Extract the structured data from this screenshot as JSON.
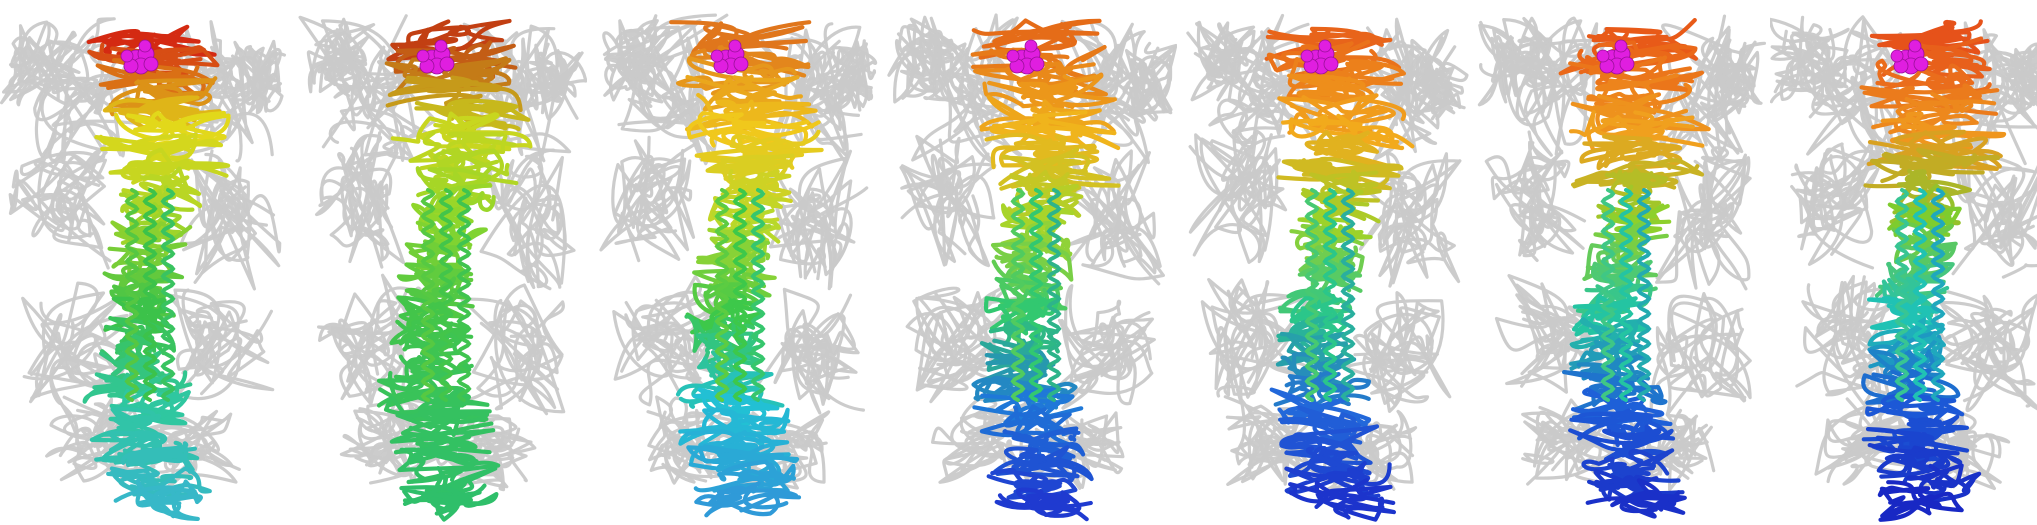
{
  "figure": {
    "description_visible_text": "",
    "panels": [
      {
        "id": "panel-1",
        "ligand_color": "#e01ee0",
        "gradient": [
          "#d42a12",
          "#e2d81a",
          "#9ed42a",
          "#3cc24a",
          "#2fc7a0",
          "#37b8c8"
        ]
      },
      {
        "id": "panel-2",
        "ligand_color": "#e01ee0",
        "gradient": [
          "#c23f12",
          "#c8d61f",
          "#8fd62b",
          "#43c54a",
          "#36c25d",
          "#2fbf6a"
        ]
      },
      {
        "id": "panel-3",
        "ligand_color": "#e01ee0",
        "gradient": [
          "#e0761c",
          "#f0c81c",
          "#b8d82a",
          "#3dc84a",
          "#22c0d4",
          "#2f9ad8"
        ]
      },
      {
        "id": "panel-4",
        "ligand_color": "#e01ee0",
        "gradient": [
          "#e56c18",
          "#f0b41c",
          "#a8d42a",
          "#32c870",
          "#1f78d8",
          "#1f3ad0"
        ]
      },
      {
        "id": "panel-5",
        "ligand_color": "#e01ee0",
        "gradient": [
          "#e8641a",
          "#f2aa1c",
          "#9cd22a",
          "#2bc68a",
          "#2268da",
          "#1c34cc"
        ]
      },
      {
        "id": "panel-6",
        "ligand_color": "#e01ee0",
        "gradient": [
          "#e85a18",
          "#f0a01e",
          "#8ed02c",
          "#24c4a2",
          "#1e60d8",
          "#1a30c8"
        ]
      },
      {
        "id": "panel-7",
        "ligand_color": "#e01ee0",
        "gradient": [
          "#e6521a",
          "#ef961e",
          "#7ecc2e",
          "#20c2b4",
          "#1c58d6",
          "#1828c4"
        ]
      }
    ],
    "backbone_color": "#c9c9c9"
  }
}
